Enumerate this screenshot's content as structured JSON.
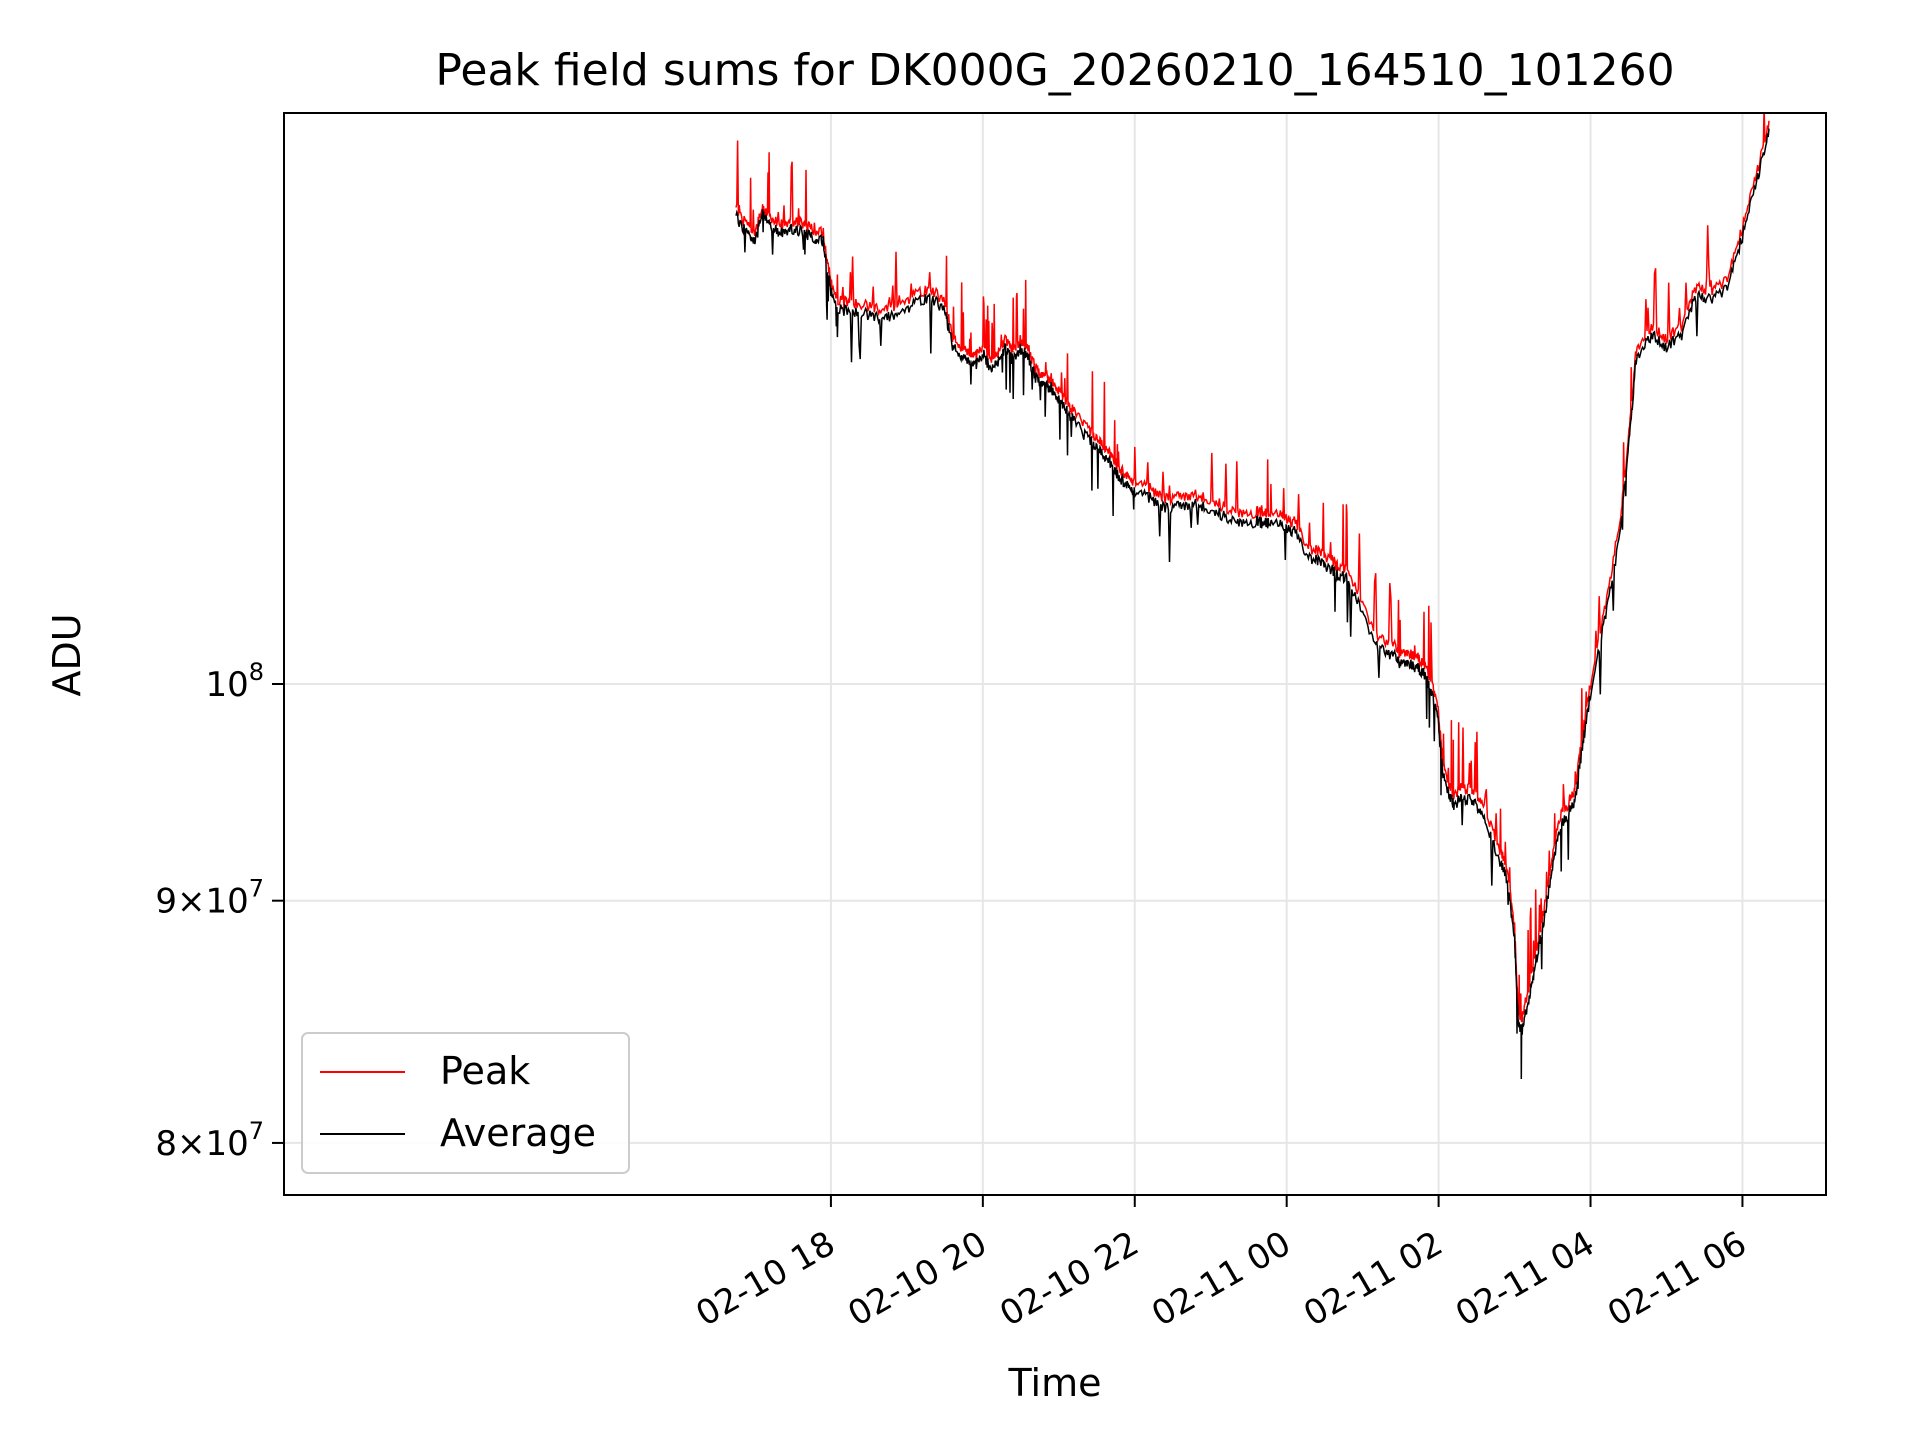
{
  "chart_data": {
    "type": "line",
    "title": "Peak field sums for DK000G_20260210_164510_101260",
    "xlabel": "Time",
    "ylabel": "ADU",
    "yscale": "log",
    "grid": true,
    "legend_position": "lower-left",
    "x_start_hours": -7.2,
    "x_end_hours": 13.1,
    "ylim": [
      78000000,
      132000000
    ],
    "x_ticks": [
      {
        "hours": 0,
        "label": "02-10 18"
      },
      {
        "hours": 2,
        "label": "02-10 20"
      },
      {
        "hours": 4,
        "label": "02-10 22"
      },
      {
        "hours": 6,
        "label": "02-11 00"
      },
      {
        "hours": 8,
        "label": "02-11 02"
      },
      {
        "hours": 10,
        "label": "02-11 04"
      },
      {
        "hours": 12,
        "label": "02-11 06"
      }
    ],
    "y_ticks": [
      {
        "value": 80000000,
        "mant": "8",
        "exp": "7"
      },
      {
        "value": 90000000,
        "mant": "9",
        "exp": "7"
      },
      {
        "value": 100000000,
        "mant": "",
        "exp": "8"
      }
    ],
    "x_reference_hour": 18,
    "x_reference_note": "hours relative to 2026-02-10 18:00",
    "series": [
      {
        "name": "Peak",
        "color": "#ff0000",
        "x": [
          -1.25,
          -1.1,
          -1.0,
          -0.9,
          -0.8,
          -0.65,
          -0.5,
          -0.35,
          -0.25,
          -0.1,
          0.0,
          0.1,
          0.3,
          0.5,
          0.7,
          0.9,
          1.1,
          1.3,
          1.5,
          1.6,
          1.7,
          1.8,
          1.9,
          2.0,
          2.1,
          2.2,
          2.3,
          2.4,
          2.5,
          2.6,
          2.7,
          2.8,
          2.9,
          3.0,
          3.1,
          3.2,
          3.4,
          3.5,
          3.6,
          3.7,
          3.8,
          3.9,
          4.0,
          4.2,
          4.4,
          4.6,
          4.8,
          5.0,
          5.2,
          5.4,
          5.6,
          5.7,
          5.8,
          5.95,
          6.1,
          6.3,
          6.45,
          6.6,
          6.7,
          6.8,
          7.0,
          7.2,
          7.4,
          7.5,
          7.6,
          7.7,
          7.8,
          7.9,
          8.0,
          8.05,
          8.15,
          8.2,
          8.3,
          8.45,
          8.6,
          8.8,
          8.9,
          9.0,
          9.05,
          9.1,
          9.2,
          9.3,
          9.4,
          9.5,
          9.6,
          9.7,
          9.8,
          9.9,
          10.0,
          10.2,
          10.4,
          10.5,
          10.6,
          10.8,
          11.0,
          11.2,
          11.4,
          11.6,
          11.8,
          12.0,
          12.2,
          12.35
        ],
        "values": [
          126000000,
          125000000,
          124500000,
          126000000,
          125500000,
          125000000,
          125300000,
          125000000,
          124700000,
          124500000,
          121500000,
          120500000,
          120300000,
          120200000,
          120000000,
          120300000,
          120800000,
          121200000,
          120500000,
          118300000,
          117800000,
          117600000,
          117200000,
          118000000,
          117000000,
          117500000,
          118300000,
          117500000,
          118200000,
          117700000,
          116500000,
          116100000,
          116000000,
          115300000,
          114700000,
          114100000,
          113200000,
          112700000,
          112200000,
          111700000,
          111100000,
          110600000,
          110300000,
          110000000,
          109400000,
          109600000,
          109600000,
          109300000,
          109000000,
          108500000,
          108700000,
          108600000,
          108700000,
          108500000,
          108200000,
          106800000,
          106600000,
          106200000,
          105800000,
          105900000,
          103900000,
          102200000,
          101900000,
          101500000,
          101600000,
          101300000,
          101100000,
          100300000,
          98500000,
          96400000,
          95100000,
          94800000,
          95100000,
          95000000,
          94200000,
          92300000,
          91400000,
          88900000,
          85300000,
          85000000,
          86500000,
          88200000,
          89800000,
          92000000,
          93800000,
          94300000,
          95100000,
          97700000,
          100000000,
          103900000,
          108700000,
          112700000,
          117600000,
          119000000,
          118300000,
          119000000,
          121400000,
          121000000,
          121800000,
          124800000,
          128400000,
          131500000
        ]
      },
      {
        "name": "Average",
        "color": "#000000",
        "x": [
          -1.25,
          -1.1,
          -1.0,
          -0.9,
          -0.8,
          -0.65,
          -0.5,
          -0.35,
          -0.25,
          -0.1,
          0.0,
          0.1,
          0.3,
          0.5,
          0.7,
          0.9,
          1.1,
          1.3,
          1.5,
          1.6,
          1.7,
          1.8,
          1.9,
          2.0,
          2.1,
          2.2,
          2.3,
          2.4,
          2.5,
          2.6,
          2.7,
          2.8,
          2.9,
          3.0,
          3.1,
          3.2,
          3.4,
          3.5,
          3.6,
          3.7,
          3.8,
          3.9,
          4.0,
          4.2,
          4.4,
          4.6,
          4.8,
          5.0,
          5.2,
          5.4,
          5.6,
          5.7,
          5.8,
          5.95,
          6.1,
          6.3,
          6.45,
          6.6,
          6.7,
          6.8,
          7.0,
          7.2,
          7.4,
          7.5,
          7.6,
          7.7,
          7.8,
          7.9,
          8.0,
          8.05,
          8.15,
          8.2,
          8.3,
          8.45,
          8.6,
          8.8,
          8.9,
          9.0,
          9.05,
          9.1,
          9.2,
          9.3,
          9.4,
          9.5,
          9.6,
          9.7,
          9.8,
          9.9,
          10.0,
          10.2,
          10.4,
          10.5,
          10.6,
          10.8,
          11.0,
          11.2,
          11.4,
          11.6,
          11.8,
          12.0,
          12.2,
          12.35
        ],
        "values": [
          125500000,
          124500000,
          124000000,
          125700000,
          125000000,
          124500000,
          124800000,
          124500000,
          124200000,
          124000000,
          121000000,
          120000000,
          119800000,
          119700000,
          119500000,
          119800000,
          120300000,
          120700000,
          120000000,
          117800000,
          117300000,
          117100000,
          116700000,
          117500000,
          116500000,
          117000000,
          117800000,
          117000000,
          117700000,
          117200000,
          116000000,
          115600000,
          115500000,
          114800000,
          114200000,
          113600000,
          112700000,
          112200000,
          111700000,
          111200000,
          110600000,
          110100000,
          109800000,
          109500000,
          108900000,
          109100000,
          109100000,
          108800000,
          108500000,
          108000000,
          108200000,
          108100000,
          108200000,
          108000000,
          107700000,
          106300000,
          106100000,
          105700000,
          105300000,
          105400000,
          103400000,
          101700000,
          101400000,
          101000000,
          101100000,
          100800000,
          100600000,
          99800000,
          98000000,
          95900000,
          94600000,
          94300000,
          94600000,
          94500000,
          93700000,
          91800000,
          90900000,
          88400000,
          84800000,
          84500000,
          86000000,
          87700000,
          89300000,
          91500000,
          93300000,
          93800000,
          94600000,
          97200000,
          99500000,
          103400000,
          108200000,
          112200000,
          117100000,
          118500000,
          117800000,
          118500000,
          120900000,
          120500000,
          121300000,
          124300000,
          127900000,
          131000000
        ]
      }
    ]
  }
}
